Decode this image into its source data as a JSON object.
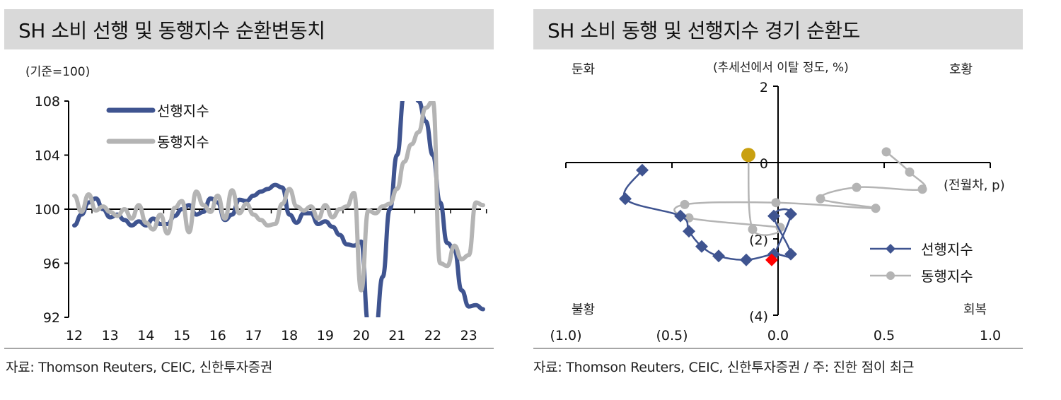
{
  "left_panel": {
    "title": "SH 소비 선행 및 동행지수 순환변동치",
    "unit_label": "(기준=100)",
    "source": "자료: Thomson Reuters, CEIC,  신한투자증권"
  },
  "right_panel": {
    "title": "SH 소비 동행 및 선행지수 경기 순환도",
    "y_unit_label": "(추세선에서 이탈 정도, %)",
    "x_unit_label": "(전월차, p)",
    "quadrants": {
      "top_left": "둔화",
      "top_right": "호황",
      "bottom_left": "불황",
      "bottom_right": "회복"
    },
    "source": "자료: Thomson Reuters, CEIC, 신한투자증권 / 주: 진한 점이 최근"
  },
  "chart_data": [
    {
      "type": "line",
      "title": "SH 소비 선행 및 동행지수 순환변동치",
      "ylabel": "(기준=100)",
      "xlabel": "",
      "ylim": [
        92,
        108
      ],
      "yticks": [
        "92",
        "96",
        "100",
        "104",
        "108"
      ],
      "xticks": [
        "12",
        "13",
        "14",
        "15",
        "16",
        "17",
        "18",
        "19",
        "20",
        "21",
        "22",
        "23"
      ],
      "baseline": 100,
      "legend_position": "top-left",
      "grid": false,
      "colors": {
        "leading": "#3f5490",
        "coincident": "#b4b4b4"
      },
      "series": [
        {
          "name": "선행지수",
          "x": [
            12.0,
            12.2,
            12.4,
            12.6,
            12.8,
            13.0,
            13.2,
            13.4,
            13.6,
            13.8,
            14.0,
            14.2,
            14.4,
            14.6,
            14.8,
            15.0,
            15.2,
            15.4,
            15.6,
            15.8,
            16.0,
            16.2,
            16.4,
            16.6,
            16.8,
            17.0,
            17.2,
            17.4,
            17.6,
            17.8,
            18.0,
            18.2,
            18.4,
            18.6,
            18.8,
            19.0,
            19.2,
            19.4,
            19.6,
            19.8,
            20.0,
            20.2,
            20.4,
            20.6,
            20.8,
            21.0,
            21.2,
            21.4,
            21.6,
            21.8,
            22.0,
            22.2,
            22.4,
            22.6,
            22.8,
            23.0,
            23.2,
            23.4
          ],
          "values": [
            98.8,
            99.6,
            100.5,
            100.8,
            100.0,
            99.4,
            99.6,
            99.2,
            98.8,
            99.1,
            98.8,
            99.3,
            98.9,
            98.9,
            99.5,
            100.0,
            100.3,
            99.6,
            99.8,
            100.8,
            100.5,
            99.2,
            99.6,
            100.7,
            100.6,
            101.0,
            101.3,
            101.5,
            101.8,
            101.6,
            99.6,
            99.0,
            99.7,
            99.7,
            98.9,
            99.1,
            98.7,
            98.1,
            97.4,
            97.3,
            97.6,
            91.5,
            91.0,
            95.0,
            100.0,
            104.0,
            108.5,
            110.0,
            108.0,
            106.5,
            104.0,
            100.5,
            97.5,
            97.0,
            94.0,
            92.8,
            92.9,
            92.6
          ]
        },
        {
          "name": "동행지수",
          "x": [
            12.0,
            12.2,
            12.4,
            12.6,
            12.8,
            13.0,
            13.2,
            13.4,
            13.6,
            13.8,
            14.0,
            14.2,
            14.4,
            14.6,
            14.8,
            15.0,
            15.2,
            15.4,
            15.6,
            15.8,
            16.0,
            16.2,
            16.4,
            16.6,
            16.8,
            17.0,
            17.2,
            17.4,
            17.6,
            17.8,
            18.0,
            18.2,
            18.4,
            18.6,
            18.8,
            19.0,
            19.2,
            19.4,
            19.6,
            19.8,
            20.0,
            20.2,
            20.4,
            20.6,
            20.8,
            21.0,
            21.2,
            21.4,
            21.6,
            21.8,
            22.0,
            22.2,
            22.4,
            22.6,
            22.8,
            23.0,
            23.2,
            23.4
          ],
          "values": [
            101.0,
            99.8,
            101.1,
            99.9,
            100.2,
            99.8,
            99.5,
            100.0,
            99.3,
            100.3,
            99.0,
            98.5,
            99.6,
            98.2,
            100.1,
            100.6,
            98.3,
            101.3,
            100.3,
            99.8,
            101.0,
            99.3,
            101.4,
            99.7,
            100.4,
            99.6,
            99.2,
            98.8,
            98.9,
            100.4,
            101.5,
            100.2,
            99.9,
            100.2,
            99.3,
            100.3,
            99.4,
            100.0,
            100.2,
            101.2,
            94.0,
            99.9,
            99.7,
            100.2,
            100.4,
            101.5,
            103.5,
            104.8,
            105.7,
            107.5,
            108.0,
            96.0,
            95.8,
            97.3,
            96.3,
            96.6,
            100.5,
            100.3
          ]
        }
      ]
    },
    {
      "type": "scatter",
      "title": "SH 소비 동행 및 선행지수 경기 순환도",
      "xlabel": "(전월차, p)",
      "ylabel": "(추세선에서 이탈 정도, %)",
      "xlim": [
        -1.0,
        1.0
      ],
      "ylim": [
        -4,
        2
      ],
      "xticks": [
        "(1.0)",
        "(0.5)",
        "0.0",
        "0.5",
        "1.0"
      ],
      "yticks": [
        "(4)",
        "(2)",
        "0",
        "2"
      ],
      "grid": false,
      "legend_position": "bottom-right",
      "annotation": "진한 점이 최근",
      "series": [
        {
          "name": "선행지수",
          "marker": "diamond",
          "color": "#3f5490",
          "latest_color": "#ff0000",
          "points": [
            [
              -0.64,
              -0.2
            ],
            [
              -0.72,
              -0.95
            ],
            [
              -0.46,
              -1.4
            ],
            [
              -0.42,
              -1.8
            ],
            [
              -0.36,
              -2.2
            ],
            [
              -0.28,
              -2.45
            ],
            [
              -0.15,
              -2.55
            ],
            [
              -0.02,
              -2.4
            ],
            [
              0.06,
              -2.4
            ],
            [
              -0.02,
              -1.4
            ],
            [
              0.06,
              -1.35
            ],
            [
              -0.03,
              -2.55
            ]
          ]
        },
        {
          "name": "동행지수",
          "marker": "circle",
          "color": "#b4b4b4",
          "latest_color": "#c9a010",
          "points": [
            [
              0.51,
              0.28
            ],
            [
              0.62,
              -0.25
            ],
            [
              0.68,
              -0.7
            ],
            [
              0.37,
              -0.65
            ],
            [
              0.2,
              -0.95
            ],
            [
              0.46,
              -1.2
            ],
            [
              -0.01,
              -1.05
            ],
            [
              -0.44,
              -1.1
            ],
            [
              -0.42,
              -1.45
            ],
            [
              0.01,
              -1.7
            ],
            [
              -0.12,
              -1.75
            ],
            [
              -0.14,
              0.2
            ]
          ]
        }
      ]
    }
  ]
}
